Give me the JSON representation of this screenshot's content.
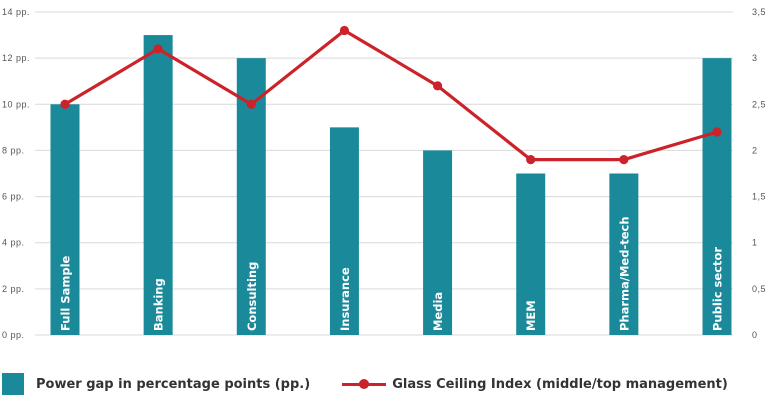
{
  "chart_data": {
    "type": "bar",
    "categories": [
      "Full Sample",
      "Banking",
      "Consulting",
      "Insurance",
      "Media",
      "MEM",
      "Pharma/Med-tech",
      "Public sector"
    ],
    "series": [
      {
        "name": "Power gap in percentage points (pp.)",
        "type": "bar",
        "axis": "left",
        "values": [
          10,
          13,
          12,
          9,
          8,
          7,
          7,
          12
        ]
      },
      {
        "name": "Glass Ceiling Index (middle/top management)",
        "type": "line",
        "axis": "right",
        "values": [
          2.5,
          3.1,
          2.5,
          3.3,
          2.7,
          1.9,
          1.9,
          2.2
        ]
      }
    ],
    "y_left": {
      "ylim": [
        0,
        14
      ],
      "ticks": [
        "0 pp.",
        "2 pp.",
        "4 pp.",
        "6 pp.",
        "8 pp.",
        "10 pp.",
        "12 pp.",
        "14 pp."
      ]
    },
    "y_right": {
      "ylim": [
        0,
        3.5
      ],
      "ticks": [
        "0",
        "0,5",
        "1",
        "1,5",
        "2",
        "2,5",
        "3",
        "3,5"
      ]
    },
    "grid": true,
    "legend": "bottom"
  },
  "colors": {
    "bar": "#1a8a9a",
    "line": "#cc2229",
    "grid": "#d9d9d9",
    "tick_text": "#555555",
    "legend_text": "#333333"
  }
}
